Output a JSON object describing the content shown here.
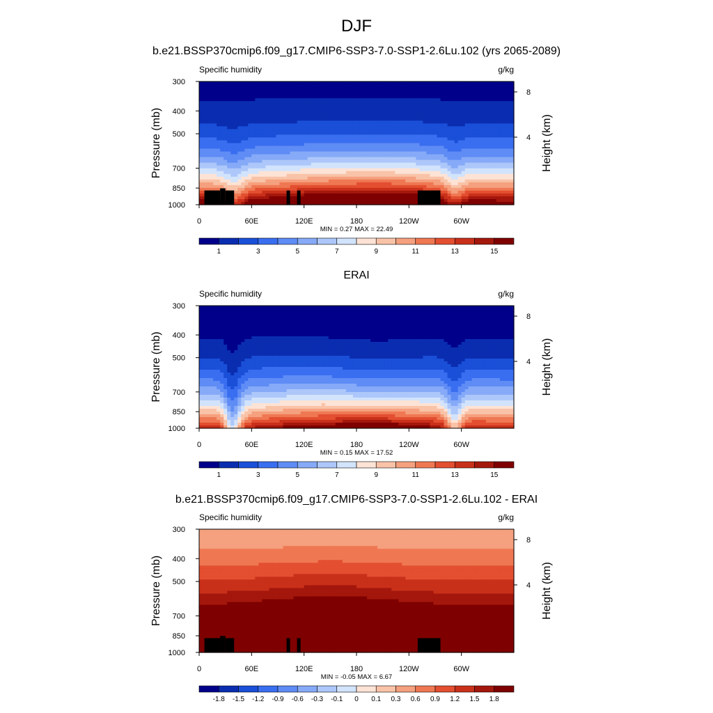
{
  "figure": {
    "title": "DJF"
  },
  "chart_data": [
    {
      "type": "heatmap",
      "title": "b.e21.BSSP370cmip6.f09_g17.CMIP6-SSP3-7.0-SSP1-2.6Lu.102 (yrs 2065-2089)",
      "left_label": "Specific humidity",
      "right_label": "g/kg",
      "ylabel": "Pressure (mb)",
      "y2label": "Height (km)",
      "ylim": [
        1000,
        300
      ],
      "yticks": [
        "300",
        "400",
        "500",
        "700",
        "850",
        "1000"
      ],
      "y2ticks": [
        "8",
        "4"
      ],
      "xticks": [
        "0",
        "60E",
        "120E",
        "180",
        "120W",
        "60W"
      ],
      "stats": "MIN =   0.27  MAX =   22.49",
      "colorbar_labels": [
        "1",
        "3",
        "5",
        "7",
        "9",
        "11",
        "13",
        "15"
      ],
      "colorbar_levels": [
        1,
        2,
        3,
        4,
        5,
        6,
        7,
        8,
        9,
        10,
        11,
        12,
        13,
        14,
        15
      ],
      "min": 0.27,
      "max": 22.49
    },
    {
      "type": "heatmap",
      "title": "ERAI",
      "left_label": "Specific humidity",
      "right_label": "g/kg",
      "ylabel": "Pressure (mb)",
      "y2label": "Height (km)",
      "ylim": [
        1000,
        300
      ],
      "yticks": [
        "300",
        "400",
        "500",
        "700",
        "850",
        "1000"
      ],
      "y2ticks": [
        "8",
        "4"
      ],
      "xticks": [
        "0",
        "60E",
        "120E",
        "180",
        "120W",
        "60W"
      ],
      "stats": "MIN =   0.15  MAX =   17.52",
      "colorbar_labels": [
        "1",
        "3",
        "5",
        "7",
        "9",
        "11",
        "13",
        "15"
      ],
      "colorbar_levels": [
        1,
        2,
        3,
        4,
        5,
        6,
        7,
        8,
        9,
        10,
        11,
        12,
        13,
        14,
        15
      ],
      "min": 0.15,
      "max": 17.52
    },
    {
      "type": "heatmap",
      "title": "b.e21.BSSP370cmip6.f09_g17.CMIP6-SSP3-7.0-SSP1-2.6Lu.102 - ERAI",
      "left_label": "Specific humidity",
      "right_label": "g/kg",
      "ylabel": "Pressure (mb)",
      "y2label": "Height (km)",
      "ylim": [
        1000,
        300
      ],
      "yticks": [
        "300",
        "400",
        "500",
        "700",
        "850",
        "1000"
      ],
      "y2ticks": [
        "8",
        "4"
      ],
      "xticks": [
        "0",
        "60E",
        "120E",
        "180",
        "120W",
        "60W"
      ],
      "stats": "MIN =  -0.05  MAX =   6.67",
      "colorbar_labels": [
        "-1.8",
        "-1.5",
        "-1.2",
        "-0.9",
        "-0.6",
        "-0.3",
        "-0.1",
        "0",
        "0.1",
        "0.3",
        "0.6",
        "0.9",
        "1.2",
        "1.5",
        "1.8"
      ],
      "colorbar_levels": [
        -1.8,
        -1.5,
        -1.2,
        -0.9,
        -0.6,
        -0.3,
        -0.1,
        0,
        0.1,
        0.3,
        0.6,
        0.9,
        1.2,
        1.5,
        1.8
      ],
      "min": -0.05,
      "max": 6.67
    }
  ],
  "colors": {
    "palette_16": [
      "#00008b",
      "#0a2db0",
      "#1a4fd8",
      "#3a6ef0",
      "#5f8cf5",
      "#86aaf7",
      "#adc7fa",
      "#d2e3fc",
      "#fde3d5",
      "#f9c3a8",
      "#f5a07e",
      "#ef7853",
      "#e34f30",
      "#c9301a",
      "#a4170c",
      "#7f0000"
    ],
    "topography": "#000000"
  }
}
